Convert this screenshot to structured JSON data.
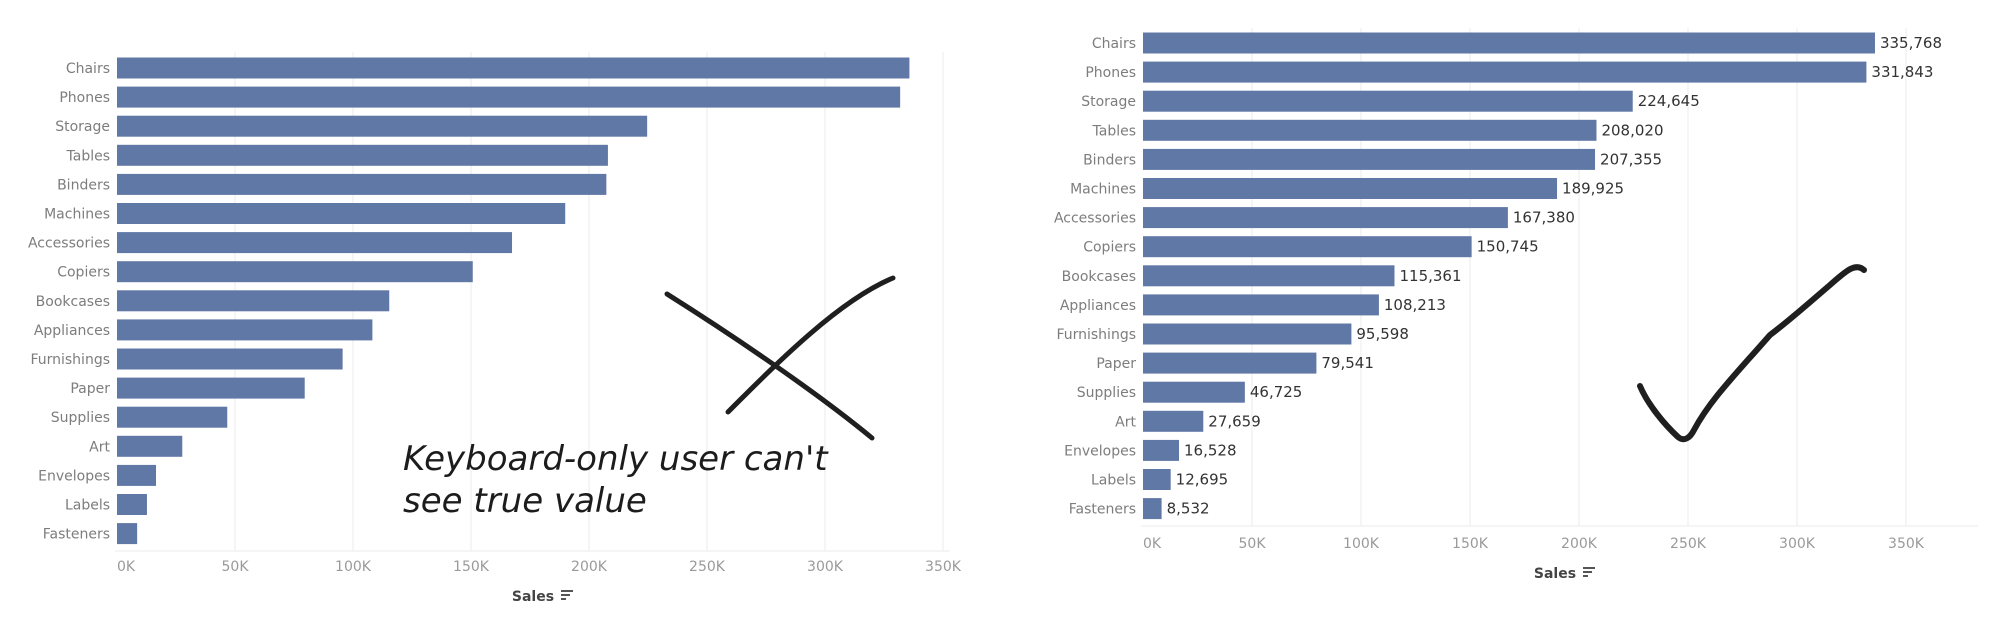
{
  "colors": {
    "bar": "#6078a6",
    "grid": "#ebebeb",
    "ink": "#1f1f1f"
  },
  "chart_data": [
    {
      "type": "bar",
      "orientation": "horizontal",
      "categories": [
        "Chairs",
        "Phones",
        "Storage",
        "Tables",
        "Binders",
        "Machines",
        "Accessories",
        "Copiers",
        "Bookcases",
        "Appliances",
        "Furnishings",
        "Paper",
        "Supplies",
        "Art",
        "Envelopes",
        "Labels",
        "Fasteners"
      ],
      "values": [
        335768,
        331843,
        224645,
        208020,
        207355,
        189925,
        167380,
        150745,
        115361,
        108213,
        95598,
        79541,
        46725,
        27659,
        16528,
        12695,
        8532
      ],
      "xlabel": "Sales",
      "ticks": [
        "0K",
        "50K",
        "100K",
        "150K",
        "200K",
        "250K",
        "300K",
        "350K"
      ],
      "xlim": [
        0,
        350000
      ],
      "data_labels": false,
      "grid": true,
      "annotation": {
        "text_lines": [
          "Keyboard-only user can't",
          "see true value"
        ],
        "mark": "cross-icon"
      }
    },
    {
      "type": "bar",
      "orientation": "horizontal",
      "categories": [
        "Chairs",
        "Phones",
        "Storage",
        "Tables",
        "Binders",
        "Machines",
        "Accessories",
        "Copiers",
        "Bookcases",
        "Appliances",
        "Furnishings",
        "Paper",
        "Supplies",
        "Art",
        "Envelopes",
        "Labels",
        "Fasteners"
      ],
      "values": [
        335768,
        331843,
        224645,
        208020,
        207355,
        189925,
        167380,
        150745,
        115361,
        108213,
        95598,
        79541,
        46725,
        27659,
        16528,
        12695,
        8532
      ],
      "value_labels": [
        "335,768",
        "331,843",
        "224,645",
        "208,020",
        "207,355",
        "189,925",
        "167,380",
        "150,745",
        "115,361",
        "108,213",
        "95,598",
        "79,541",
        "46,725",
        "27,659",
        "16,528",
        "12,695",
        "8,532"
      ],
      "xlabel": "Sales",
      "ticks": [
        "0K",
        "50K",
        "100K",
        "150K",
        "200K",
        "250K",
        "300K",
        "350K"
      ],
      "xlim": [
        0,
        350000
      ],
      "data_labels": true,
      "grid": true,
      "annotation": {
        "mark": "checkmark-icon"
      }
    }
  ]
}
